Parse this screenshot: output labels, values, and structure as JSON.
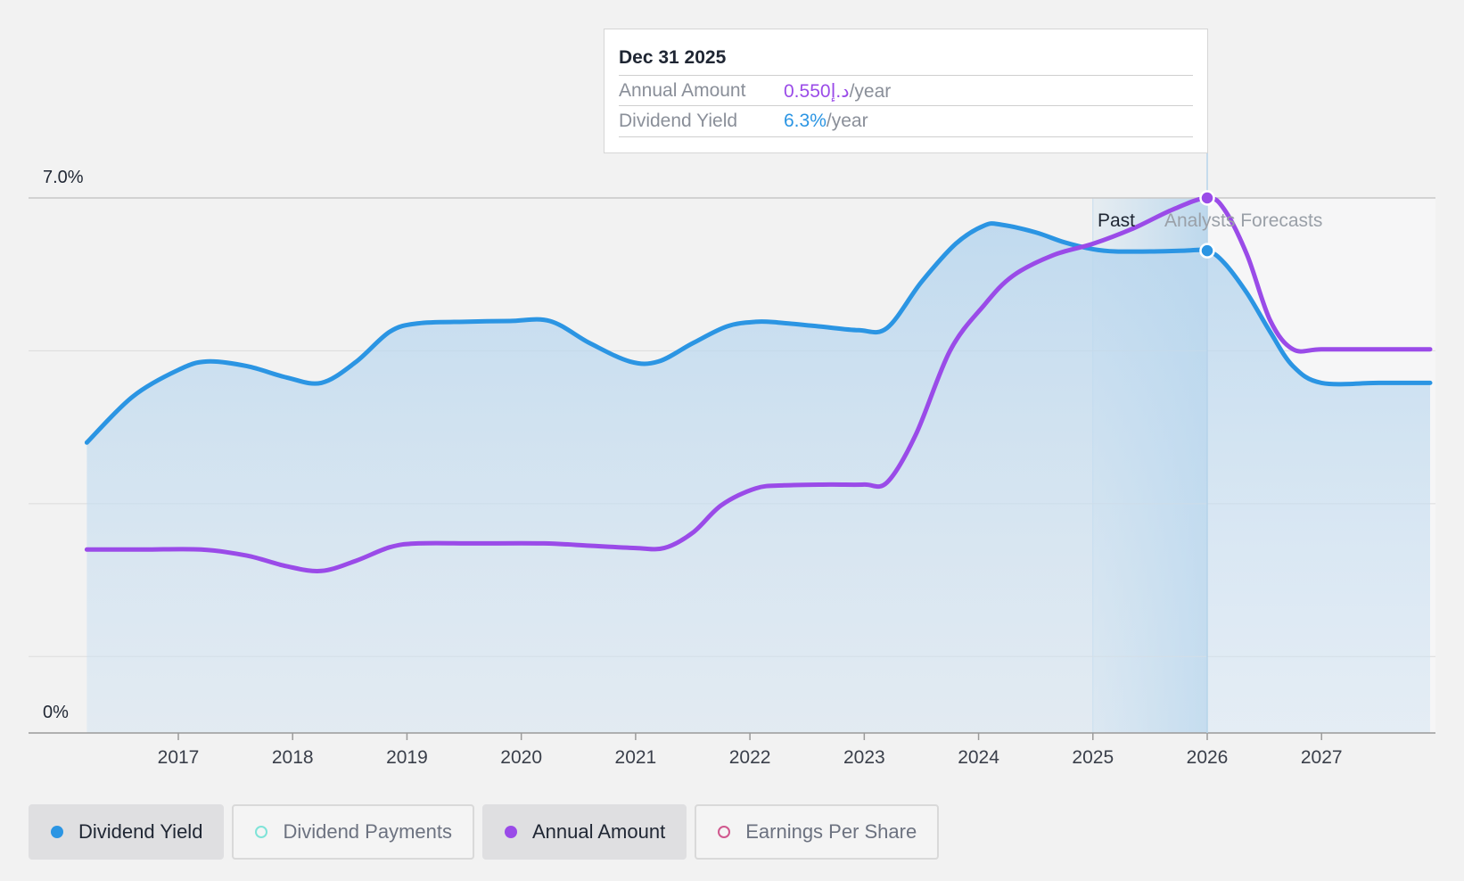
{
  "tooltip": {
    "date": "Dec 31 2025",
    "rows": [
      {
        "label": "Annual Amount",
        "value": "0.550د.إ",
        "unit": "/year"
      },
      {
        "label": "Dividend Yield",
        "value": "6.3%",
        "unit": "/year"
      }
    ]
  },
  "legend": [
    {
      "label": "Dividend Yield",
      "active": true,
      "color": "#2b95e3",
      "filled": true,
      "icon": "filled-dot-icon"
    },
    {
      "label": "Dividend Payments",
      "active": false,
      "color": "#7fe3d8",
      "filled": false,
      "icon": "hollow-dot-icon"
    },
    {
      "label": "Annual Amount",
      "active": true,
      "color": "#9a4be8",
      "filled": true,
      "icon": "filled-dot-icon"
    },
    {
      "label": "Earnings Per Share",
      "active": false,
      "color": "#d0588e",
      "filled": false,
      "icon": "hollow-dot-icon"
    }
  ],
  "chart_data": {
    "type": "line",
    "y_tick_labels": [
      "7.0%",
      "0%"
    ],
    "ylim": [
      0,
      7.0
    ],
    "x_tick_labels": [
      "2017",
      "2018",
      "2019",
      "2020",
      "2021",
      "2022",
      "2023",
      "2024",
      "2025",
      "2026",
      "2027"
    ],
    "xlim": [
      2016.2,
      2027.95
    ],
    "grid": true,
    "legend_position": "bottom-left",
    "region_labels": {
      "past": "Past",
      "forecast": "Analysts Forecasts"
    },
    "past_region": [
      2025.0,
      2026.0
    ],
    "highlight_x": 2026.0,
    "colors": {
      "dividend_yield": "#2b95e3",
      "annual_amount": "#9a4be8",
      "area_fill": "#c6ddf0"
    },
    "series": [
      {
        "name": "Dividend Yield",
        "unit": "%",
        "filled_area": true,
        "x": [
          2016.2,
          2016.6,
          2017.0,
          2017.25,
          2017.6,
          2017.95,
          2018.25,
          2018.55,
          2018.85,
          2019.1,
          2019.5,
          2019.9,
          2020.25,
          2020.6,
          2020.95,
          2021.2,
          2021.5,
          2021.8,
          2022.05,
          2022.25,
          2022.6,
          2022.95,
          2023.2,
          2023.5,
          2023.8,
          2024.05,
          2024.2,
          2024.5,
          2024.75,
          2025.0,
          2025.2,
          2025.5,
          2025.8,
          2026.0,
          2026.15,
          2026.35,
          2026.55,
          2026.75,
          2027.0,
          2027.5,
          2027.95
        ],
        "values": [
          3.8,
          4.4,
          4.75,
          4.86,
          4.8,
          4.65,
          4.58,
          4.85,
          5.25,
          5.36,
          5.38,
          5.39,
          5.39,
          5.1,
          4.86,
          4.86,
          5.1,
          5.32,
          5.38,
          5.37,
          5.32,
          5.27,
          5.3,
          5.9,
          6.4,
          6.64,
          6.65,
          6.55,
          6.42,
          6.33,
          6.3,
          6.3,
          6.31,
          6.31,
          6.15,
          5.75,
          5.25,
          4.8,
          4.58,
          4.58,
          4.58
        ]
      },
      {
        "name": "Annual Amount",
        "unit": "د.إ/year",
        "filled_area": false,
        "x": [
          2016.2,
          2016.7,
          2017.2,
          2017.6,
          2017.95,
          2018.25,
          2018.55,
          2018.85,
          2019.1,
          2019.6,
          2020.2,
          2020.6,
          2021.0,
          2021.25,
          2021.5,
          2021.75,
          2022.05,
          2022.3,
          2022.7,
          2023.0,
          2023.2,
          2023.45,
          2023.75,
          2024.05,
          2024.3,
          2024.65,
          2025.0,
          2025.35,
          2025.7,
          2026.0,
          2026.15,
          2026.35,
          2026.55,
          2026.75,
          2027.0,
          2027.5,
          2027.95
        ],
        "values": [
          2.4,
          2.4,
          2.4,
          2.32,
          2.18,
          2.12,
          2.25,
          2.43,
          2.48,
          2.48,
          2.48,
          2.45,
          2.42,
          2.42,
          2.62,
          2.98,
          3.2,
          3.24,
          3.25,
          3.25,
          3.28,
          3.9,
          5.0,
          5.6,
          5.98,
          6.25,
          6.4,
          6.6,
          6.85,
          7.0,
          6.85,
          6.25,
          5.4,
          5.02,
          5.02,
          5.02,
          5.02
        ]
      }
    ]
  }
}
